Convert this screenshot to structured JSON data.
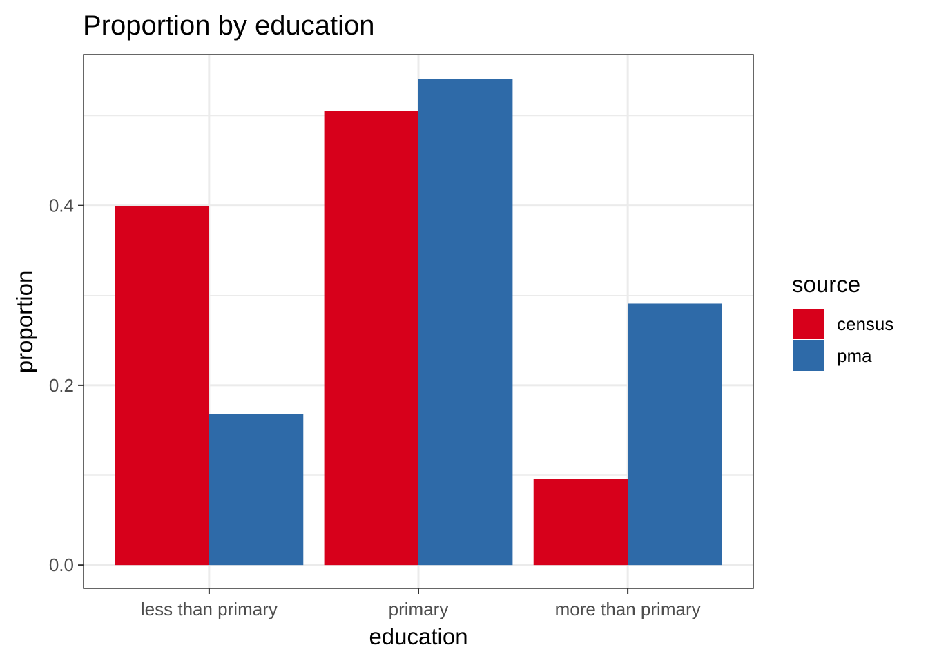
{
  "chart_data": {
    "type": "bar",
    "title": "Proportion by education",
    "xlabel": "education",
    "ylabel": "proportion",
    "categories": [
      "less than primary",
      "primary",
      "more than primary"
    ],
    "series": [
      {
        "name": "census",
        "color": "#D7001B",
        "values": [
          0.399,
          0.505,
          0.096
        ]
      },
      {
        "name": "pma",
        "color": "#2E6AA8",
        "values": [
          0.168,
          0.541,
          0.291
        ]
      }
    ],
    "yticks": [
      0.0,
      0.2,
      0.4
    ],
    "ytick_labels": [
      "0.0",
      "0.2",
      "0.4"
    ],
    "ylim": [
      -0.026,
      0.568
    ],
    "grid": true,
    "legend": {
      "title": "source",
      "placement": "right"
    }
  }
}
